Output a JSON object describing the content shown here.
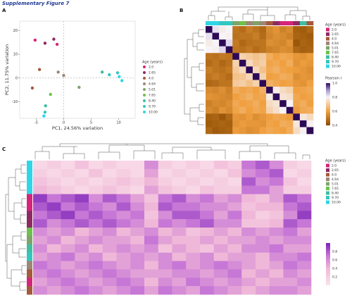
{
  "figure_title": "Supplementary Figure 7",
  "panels": [
    "A",
    "B",
    "C"
  ],
  "chart_data": [
    {
      "type": "scatter",
      "xlabel": "PC1, 24.56% variation",
      "ylabel": "PC2, 11.75% variation",
      "xlim": [
        -8,
        13
      ],
      "ylim": [
        -17,
        24
      ],
      "xticks": [
        -5,
        0,
        5,
        10
      ],
      "yticks": [
        -10,
        0,
        10,
        20
      ],
      "hline": 0,
      "vline": 0,
      "legend_title": "Age (years)",
      "series": [
        {
          "name": "2.0",
          "color": "#d6247a",
          "x": [
            -5.2,
            -1.2
          ],
          "y": [
            16,
            14.2
          ]
        },
        {
          "name": "2.65",
          "color": "#8e2a63",
          "x": [
            -3.4,
            -1.8
          ],
          "y": [
            14.7,
            16.4
          ]
        },
        {
          "name": "4.0",
          "color": "#a55a3c",
          "x": [
            -4.4,
            -5.7
          ],
          "y": [
            3.6,
            -4.2
          ]
        },
        {
          "name": "4.64",
          "color": "#9c8776",
          "x": [
            -1,
            0
          ],
          "y": [
            2.5,
            1.1
          ]
        },
        {
          "name": "5.01",
          "color": "#7fa36a",
          "x": [
            2.8
          ],
          "y": [
            -3.9
          ]
        },
        {
          "name": "7.65",
          "color": "#6cc24a",
          "x": [
            -2.4
          ],
          "y": [
            -6.9
          ]
        },
        {
          "name": "8.40",
          "color": "#3fbfa0",
          "x": [
            -3.3,
            7
          ],
          "y": [
            -11.7,
            2.5
          ]
        },
        {
          "name": "9.70",
          "color": "#33c7c0",
          "x": [
            8.3,
            9.8,
            -3.4
          ],
          "y": [
            1.4,
            2.2,
            -14.4
          ]
        },
        {
          "name": "10.00",
          "color": "#2fd6e6",
          "x": [
            10.1,
            10.6,
            -3.6
          ],
          "y": [
            0.6,
            -1.1,
            -16
          ]
        }
      ]
    },
    {
      "type": "heatmap",
      "legend_title": "Age (years)",
      "colorbar_title": "Pearson r",
      "clim": [
        0.4,
        1
      ],
      "cticks": [
        0.4,
        0.6,
        0.8,
        {
          "value": 1,
          "label": "1.0"
        }
      ],
      "colorscale": [
        [
          0.4,
          "#8c4a00"
        ],
        [
          0.6,
          "#f0a040"
        ],
        [
          0.8,
          "#f7f4f9"
        ],
        [
          0.9,
          "#a996cf"
        ],
        [
          1,
          "#2d0a57"
        ]
      ],
      "col_colors": [
        "#2fd6e6",
        "#2fd6e6",
        "#33c7c0",
        "#33c7c0",
        "#7fa36a",
        "#6cc24a",
        "#9c8776",
        "#7fa36a",
        "#9c8776",
        "#a55a3c",
        "#8e2a63",
        "#d6247a",
        "#d6247a",
        "#8e2a63",
        "#3fbfa0",
        "#a55a3c"
      ],
      "row_colors": [
        "#2fd6e6",
        "#2fd6e6",
        "#33c7c0",
        "#33c7c0",
        "#7fa36a",
        "#6cc24a",
        "#9c8776",
        "#7fa36a",
        "#9c8776",
        "#a55a3c",
        "#8e2a63",
        "#d6247a",
        "#d6247a",
        "#8e2a63",
        "#3fbfa0",
        "#a55a3c"
      ],
      "values": [
        [
          1,
          0.82,
          0.78,
          0.8,
          0.5,
          0.48,
          0.52,
          0.5,
          0.47,
          0.55,
          0.57,
          0.53,
          0.55,
          0.45,
          0.44,
          0.47
        ],
        [
          0.82,
          1,
          0.8,
          0.79,
          0.49,
          0.5,
          0.5,
          0.52,
          0.48,
          0.54,
          0.56,
          0.55,
          0.53,
          0.46,
          0.45,
          0.44
        ],
        [
          0.78,
          0.8,
          1,
          0.83,
          0.51,
          0.47,
          0.49,
          0.5,
          0.5,
          0.56,
          0.55,
          0.54,
          0.57,
          0.43,
          0.46,
          0.45
        ],
        [
          0.8,
          0.79,
          0.83,
          1,
          0.5,
          0.49,
          0.51,
          0.48,
          0.5,
          0.53,
          0.54,
          0.56,
          0.55,
          0.47,
          0.45,
          0.46
        ],
        [
          0.5,
          0.49,
          0.51,
          0.5,
          1,
          0.72,
          0.7,
          0.68,
          0.7,
          0.63,
          0.6,
          0.62,
          0.61,
          0.58,
          0.57,
          0.59
        ],
        [
          0.48,
          0.5,
          0.47,
          0.49,
          0.72,
          1,
          0.74,
          0.69,
          0.71,
          0.61,
          0.62,
          0.6,
          0.63,
          0.57,
          0.59,
          0.58
        ],
        [
          0.52,
          0.5,
          0.49,
          0.51,
          0.7,
          0.74,
          1,
          0.73,
          0.68,
          0.62,
          0.64,
          0.61,
          0.6,
          0.59,
          0.58,
          0.56
        ],
        [
          0.5,
          0.52,
          0.5,
          0.48,
          0.68,
          0.69,
          0.73,
          1,
          0.72,
          0.6,
          0.61,
          0.63,
          0.62,
          0.56,
          0.58,
          0.57
        ],
        [
          0.47,
          0.48,
          0.5,
          0.5,
          0.7,
          0.71,
          0.68,
          0.72,
          1,
          0.64,
          0.62,
          0.6,
          0.61,
          0.58,
          0.57,
          0.6
        ],
        [
          0.55,
          0.54,
          0.56,
          0.53,
          0.63,
          0.61,
          0.62,
          0.6,
          0.64,
          1,
          0.78,
          0.74,
          0.72,
          0.6,
          0.61,
          0.62
        ],
        [
          0.57,
          0.56,
          0.55,
          0.54,
          0.6,
          0.62,
          0.64,
          0.61,
          0.62,
          0.78,
          1,
          0.76,
          0.75,
          0.62,
          0.6,
          0.61
        ],
        [
          0.53,
          0.55,
          0.54,
          0.56,
          0.62,
          0.6,
          0.61,
          0.63,
          0.6,
          0.74,
          0.76,
          1,
          0.8,
          0.61,
          0.63,
          0.6
        ],
        [
          0.55,
          0.53,
          0.57,
          0.55,
          0.61,
          0.63,
          0.6,
          0.62,
          0.61,
          0.72,
          0.75,
          0.8,
          1,
          0.59,
          0.62,
          0.63
        ],
        [
          0.45,
          0.46,
          0.43,
          0.47,
          0.58,
          0.57,
          0.59,
          0.56,
          0.58,
          0.6,
          0.62,
          0.61,
          0.59,
          1,
          0.77,
          0.74
        ],
        [
          0.44,
          0.45,
          0.46,
          0.45,
          0.57,
          0.59,
          0.58,
          0.58,
          0.57,
          0.61,
          0.6,
          0.63,
          0.62,
          0.77,
          1,
          0.79
        ],
        [
          0.47,
          0.44,
          0.45,
          0.46,
          0.59,
          0.58,
          0.56,
          0.57,
          0.6,
          0.62,
          0.61,
          0.6,
          0.63,
          0.74,
          0.79,
          1
        ]
      ]
    },
    {
      "type": "heatmap",
      "legend_title": "Age (years)",
      "clim": [
        0,
        1
      ],
      "cticks": [
        0.2,
        0.4,
        0.6,
        0.8
      ],
      "colorscale": [
        [
          0,
          "#fbe3ea"
        ],
        [
          0.4,
          "#f0b8d8"
        ],
        [
          0.7,
          "#c777d6"
        ],
        [
          1,
          "#7a22b8"
        ]
      ],
      "row_colors": [
        "#2fd6e6",
        "#2fd6e6",
        "#2fd6e6",
        "#2fd6e6",
        "#d6247a",
        "#d6247a",
        "#8e2a63",
        "#8e2a63",
        "#6cc24a",
        "#7fa36a",
        "#3fbfa0",
        "#33c7c0",
        "#9c8776",
        "#a55a3c",
        "#d6247a",
        "#a55a3c"
      ],
      "values": [
        [
          0.1,
          0.2,
          0.1,
          0.3,
          0.1,
          0.2,
          0.1,
          0.1,
          0.6,
          0.2,
          0.1,
          0.2,
          0.1,
          0.3,
          0.2,
          0.7,
          0.8,
          0.6,
          0.2,
          0.1
        ],
        [
          0.2,
          0.1,
          0.2,
          0.1,
          0.3,
          0.1,
          0.2,
          0.1,
          0.5,
          0.1,
          0.2,
          0.1,
          0.2,
          0.1,
          0.3,
          0.6,
          0.7,
          0.8,
          0.1,
          0.2
        ],
        [
          0.3,
          0.2,
          0.1,
          0.2,
          0.1,
          0.2,
          0.3,
          0.2,
          0.4,
          0.2,
          0.1,
          0.2,
          0.1,
          0.2,
          0.1,
          0.8,
          0.6,
          0.7,
          0.3,
          0.1
        ],
        [
          0.4,
          0.3,
          0.2,
          0.1,
          0.2,
          0.3,
          0.2,
          0.1,
          0.5,
          0.3,
          0.2,
          0.1,
          0.3,
          0.2,
          0.2,
          0.7,
          0.7,
          0.5,
          0.2,
          0.2
        ],
        [
          0.9,
          0.7,
          0.8,
          0.9,
          0.6,
          0.8,
          0.7,
          0.5,
          0.3,
          0.7,
          0.8,
          0.6,
          0.7,
          0.5,
          0.6,
          0.4,
          0.3,
          0.5,
          0.8,
          0.7
        ],
        [
          0.8,
          0.9,
          0.7,
          0.8,
          0.7,
          0.6,
          0.8,
          0.6,
          0.4,
          0.8,
          0.7,
          0.7,
          0.6,
          0.6,
          0.5,
          0.3,
          0.4,
          0.4,
          0.7,
          0.8
        ],
        [
          0.7,
          0.8,
          0.9,
          0.7,
          0.8,
          0.7,
          0.6,
          0.7,
          0.3,
          0.6,
          0.8,
          0.8,
          0.7,
          0.5,
          0.7,
          0.4,
          0.2,
          0.3,
          0.6,
          0.9
        ],
        [
          0.8,
          0.6,
          0.7,
          0.8,
          0.7,
          0.8,
          0.7,
          0.6,
          0.4,
          0.7,
          0.6,
          0.7,
          0.8,
          0.6,
          0.6,
          0.3,
          0.3,
          0.4,
          0.8,
          0.7
        ],
        [
          0.6,
          0.5,
          0.6,
          0.4,
          0.5,
          0.6,
          0.4,
          0.5,
          0.6,
          0.4,
          0.5,
          0.3,
          0.4,
          0.5,
          0.4,
          0.6,
          0.5,
          0.6,
          0.7,
          0.5
        ],
        [
          0.5,
          0.6,
          0.4,
          0.5,
          0.6,
          0.5,
          0.5,
          0.4,
          0.7,
          0.5,
          0.4,
          0.4,
          0.5,
          0.4,
          0.5,
          0.5,
          0.6,
          0.5,
          0.6,
          0.6
        ],
        [
          0.6,
          0.4,
          0.5,
          0.6,
          0.4,
          0.5,
          0.6,
          0.5,
          0.6,
          0.3,
          0.5,
          0.4,
          0.3,
          0.5,
          0.4,
          0.6,
          0.6,
          0.7,
          0.5,
          0.5
        ],
        [
          0.5,
          0.6,
          0.7,
          0.5,
          0.6,
          0.4,
          0.5,
          0.6,
          0.5,
          0.6,
          0.4,
          0.5,
          0.6,
          0.4,
          0.5,
          0.5,
          0.4,
          0.6,
          0.6,
          0.7
        ],
        [
          0.7,
          0.6,
          0.5,
          0.6,
          0.7,
          0.6,
          0.5,
          0.6,
          0.4,
          0.6,
          0.7,
          0.5,
          0.6,
          0.7,
          0.6,
          0.5,
          0.4,
          0.5,
          0.7,
          0.6
        ],
        [
          0.6,
          0.7,
          0.6,
          0.5,
          0.6,
          0.7,
          0.6,
          0.5,
          0.5,
          0.5,
          0.6,
          0.6,
          0.5,
          0.6,
          0.7,
          0.4,
          0.5,
          0.4,
          0.6,
          0.5
        ],
        [
          0.5,
          0.6,
          0.7,
          0.6,
          0.5,
          0.6,
          0.7,
          0.6,
          0.4,
          0.6,
          0.5,
          0.7,
          0.6,
          0.5,
          0.6,
          0.5,
          0.4,
          0.5,
          0.5,
          0.6
        ],
        [
          0.6,
          0.5,
          0.6,
          0.7,
          0.6,
          0.5,
          0.6,
          0.7,
          0.5,
          0.7,
          0.6,
          0.5,
          0.7,
          0.6,
          0.5,
          0.4,
          0.5,
          0.6,
          0.6,
          0.5
        ]
      ]
    }
  ]
}
